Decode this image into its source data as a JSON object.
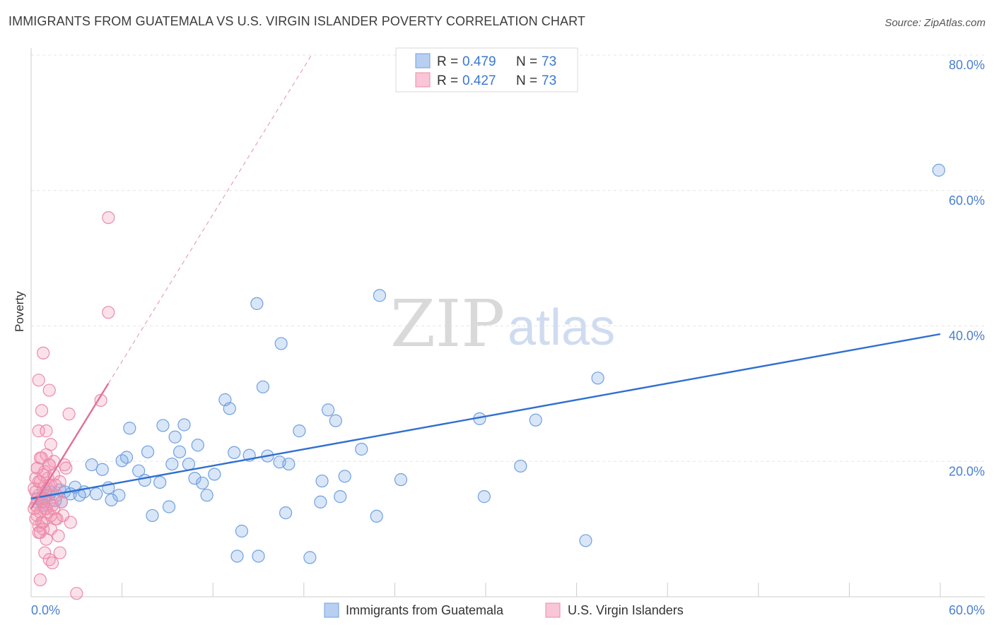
{
  "title": "IMMIGRANTS FROM GUATEMALA VS U.S. VIRGIN ISLANDER POVERTY CORRELATION CHART",
  "source": "Source: ZipAtlas.com",
  "watermark": {
    "zip": "ZIP",
    "atlas": "atlas"
  },
  "chart_data": {
    "type": "scatter",
    "ylabel": "Poverty",
    "xlabel": "",
    "xlim": [
      0,
      60
    ],
    "ylim": [
      0,
      80
    ],
    "x_tick_labels": [
      "0.0%",
      "60.0%"
    ],
    "y_ticks": [
      20,
      40,
      60,
      80
    ],
    "y_tick_labels": [
      "20.0%",
      "40.0%",
      "60.0%",
      "80.0%"
    ],
    "legend_box": [
      {
        "r_label": "R =",
        "r_value": "0.479",
        "n_label": "N =",
        "n_value": "73"
      },
      {
        "r_label": "R =",
        "r_value": "0.427",
        "n_label": "N =",
        "n_value": "73"
      }
    ],
    "series": [
      {
        "name": "Immigrants from Guatemala",
        "color": "#6fa0e0",
        "fill": "rgba(120,165,230,0.28)",
        "trend": {
          "x0": 0.0,
          "y0": 14.5,
          "x1": 60.0,
          "y1": 38.8,
          "color": "#2f6fd0"
        },
        "points": [
          [
            0.4,
            14.5
          ],
          [
            0.7,
            14.0
          ],
          [
            1.0,
            15.0
          ],
          [
            1.3,
            15.5
          ],
          [
            1.6,
            14.2
          ],
          [
            1.9,
            15.8
          ],
          [
            2.2,
            15.5
          ],
          [
            2.6,
            15.2
          ],
          [
            2.9,
            16.2
          ],
          [
            3.2,
            15.0
          ],
          [
            3.5,
            15.5
          ],
          [
            4.0,
            19.5
          ],
          [
            4.3,
            15.2
          ],
          [
            4.7,
            18.8
          ],
          [
            5.1,
            16.1
          ],
          [
            5.3,
            14.3
          ],
          [
            5.8,
            15.0
          ],
          [
            6.0,
            20.1
          ],
          [
            6.3,
            20.6
          ],
          [
            6.5,
            24.9
          ],
          [
            7.1,
            18.6
          ],
          [
            7.5,
            17.2
          ],
          [
            7.7,
            21.4
          ],
          [
            8.0,
            12.0
          ],
          [
            8.5,
            16.9
          ],
          [
            8.7,
            25.3
          ],
          [
            9.1,
            13.3
          ],
          [
            9.3,
            19.6
          ],
          [
            9.5,
            23.6
          ],
          [
            9.8,
            21.4
          ],
          [
            10.1,
            25.4
          ],
          [
            10.4,
            19.6
          ],
          [
            10.8,
            17.5
          ],
          [
            11.0,
            22.4
          ],
          [
            11.3,
            16.8
          ],
          [
            11.6,
            15.0
          ],
          [
            12.1,
            18.1
          ],
          [
            12.8,
            29.1
          ],
          [
            13.1,
            27.8
          ],
          [
            13.4,
            21.3
          ],
          [
            13.6,
            6.0
          ],
          [
            13.9,
            9.7
          ],
          [
            14.4,
            20.9
          ],
          [
            14.9,
            43.3
          ],
          [
            15.0,
            6.0
          ],
          [
            15.3,
            31.0
          ],
          [
            15.6,
            20.8
          ],
          [
            16.4,
            19.9
          ],
          [
            16.5,
            37.4
          ],
          [
            16.8,
            12.4
          ],
          [
            17.0,
            19.6
          ],
          [
            17.7,
            24.5
          ],
          [
            18.4,
            5.8
          ],
          [
            19.1,
            14.0
          ],
          [
            19.2,
            17.1
          ],
          [
            19.6,
            27.6
          ],
          [
            20.1,
            26.0
          ],
          [
            20.4,
            14.8
          ],
          [
            20.7,
            17.8
          ],
          [
            21.8,
            21.8
          ],
          [
            22.8,
            11.9
          ],
          [
            23.0,
            44.5
          ],
          [
            24.4,
            17.3
          ],
          [
            29.6,
            26.3
          ],
          [
            29.9,
            14.8
          ],
          [
            32.3,
            19.3
          ],
          [
            33.3,
            26.1
          ],
          [
            36.6,
            8.3
          ],
          [
            37.4,
            32.3
          ],
          [
            59.9,
            63.0
          ],
          [
            1.2,
            15.0
          ],
          [
            0.8,
            13.5
          ],
          [
            2.0,
            14.0
          ]
        ]
      },
      {
        "name": "U.S. Virgin Islanders",
        "color": "#ec8aaa",
        "fill": "rgba(240,150,180,0.28)",
        "trend": {
          "x0": 0.0,
          "y0": 13.0,
          "x1": 5.1,
          "y1": 31.5,
          "color": "#e0709a"
        },
        "trend_dashed": {
          "x0": 5.1,
          "y0": 31.5,
          "x1": 18.5,
          "y1": 80.0,
          "color": "#eaa0b8"
        },
        "points": [
          [
            0.2,
            16.0
          ],
          [
            0.3,
            17.5
          ],
          [
            0.3,
            13.5
          ],
          [
            0.4,
            12.0
          ],
          [
            0.4,
            19.0
          ],
          [
            0.5,
            10.5
          ],
          [
            0.5,
            15.0
          ],
          [
            0.6,
            9.5
          ],
          [
            0.6,
            17.0
          ],
          [
            0.7,
            14.5
          ],
          [
            0.7,
            20.5
          ],
          [
            0.8,
            11.0
          ],
          [
            0.8,
            16.0
          ],
          [
            0.9,
            13.0
          ],
          [
            0.9,
            18.5
          ],
          [
            1.0,
            8.5
          ],
          [
            1.0,
            15.5
          ],
          [
            1.1,
            12.5
          ],
          [
            1.1,
            17.5
          ],
          [
            1.2,
            14.0
          ],
          [
            1.2,
            19.5
          ],
          [
            1.3,
            10.0
          ],
          [
            1.3,
            16.5
          ],
          [
            1.4,
            13.5
          ],
          [
            1.5,
            18.0
          ],
          [
            1.6,
            11.5
          ],
          [
            1.7,
            15.0
          ],
          [
            1.8,
            9.0
          ],
          [
            1.9,
            17.0
          ],
          [
            2.0,
            14.0
          ],
          [
            2.1,
            12.0
          ],
          [
            2.2,
            19.5
          ],
          [
            0.5,
            24.5
          ],
          [
            0.5,
            32.0
          ],
          [
            0.7,
            27.5
          ],
          [
            0.8,
            36.0
          ],
          [
            1.0,
            24.5
          ],
          [
            1.2,
            30.5
          ],
          [
            1.3,
            22.5
          ],
          [
            1.5,
            20.0
          ],
          [
            2.5,
            27.0
          ],
          [
            2.3,
            19.0
          ],
          [
            0.6,
            2.5
          ],
          [
            0.9,
            6.5
          ],
          [
            1.2,
            5.5
          ],
          [
            1.4,
            5.0
          ],
          [
            1.9,
            6.5
          ],
          [
            2.6,
            11.0
          ],
          [
            3.0,
            0.5
          ],
          [
            5.1,
            42.0
          ],
          [
            5.1,
            56.0
          ],
          [
            4.6,
            29.0
          ],
          [
            0.4,
            14.0
          ],
          [
            0.6,
            12.5
          ],
          [
            0.8,
            18.0
          ],
          [
            1.0,
            13.0
          ],
          [
            1.1,
            16.0
          ],
          [
            0.3,
            15.5
          ],
          [
            0.5,
            17.0
          ],
          [
            0.7,
            11.0
          ],
          [
            0.9,
            14.5
          ],
          [
            1.3,
            12.0
          ],
          [
            1.6,
            16.5
          ],
          [
            0.4,
            19.0
          ],
          [
            0.6,
            20.5
          ],
          [
            0.8,
            10.0
          ],
          [
            1.0,
            21.0
          ],
          [
            1.2,
            19.5
          ],
          [
            1.5,
            13.0
          ],
          [
            0.2,
            13.0
          ],
          [
            0.3,
            11.5
          ],
          [
            0.5,
            9.5
          ],
          [
            1.7,
            11.5
          ]
        ]
      }
    ]
  }
}
